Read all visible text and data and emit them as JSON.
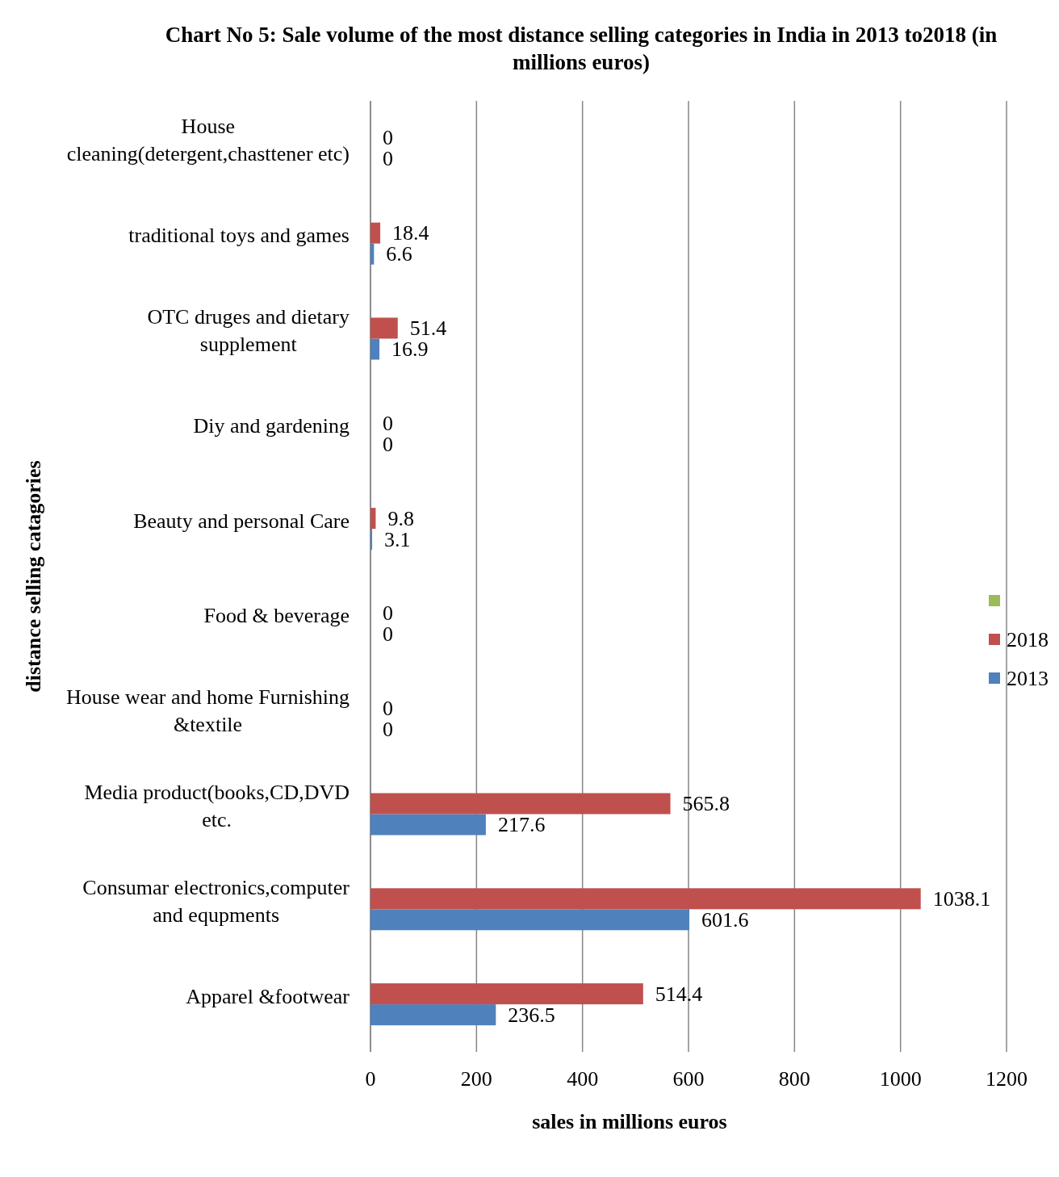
{
  "chart_data": {
    "type": "bar",
    "orientation": "horizontal",
    "title": "Chart No 5: Sale volume of the most distance selling categories in India in 2013 to2018 (in millions euros)",
    "xlabel": "sales in millions euros",
    "ylabel": "distance selling catagories",
    "categories": [
      "House cleaning(detergent,chasttener etc)",
      "traditional toys and games",
      "OTC druges and dietary supplement",
      "Diy and gardening",
      "Beauty and personal Care",
      "Food & beverage",
      "House wear and home Furnishing &textile",
      "Media product(books,CD,DVD etc.",
      "Consumar electronics,computer and equpments",
      "Apparel &footwear"
    ],
    "series": [
      {
        "name": "2013",
        "color": "#4f81bd",
        "values": [
          0,
          6.6,
          16.9,
          0,
          3.1,
          0,
          0,
          217.6,
          601.6,
          236.5
        ]
      },
      {
        "name": "2018",
        "color": "#c0504d",
        "values": [
          0,
          18.4,
          51.4,
          0,
          9.8,
          0,
          0,
          565.8,
          1038.1,
          514.4
        ]
      },
      {
        "color": "#9bbb59",
        "values": [
          null,
          null,
          null,
          null,
          null,
          null,
          null,
          null,
          null,
          null
        ]
      }
    ],
    "xlim": [
      0,
      1200
    ],
    "xticks": [
      0,
      200,
      400,
      600,
      800,
      1000,
      1200
    ],
    "grid": "x",
    "legend": "right",
    "data_labels": true
  }
}
